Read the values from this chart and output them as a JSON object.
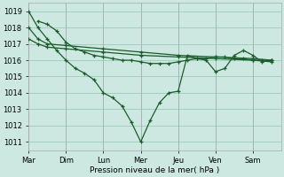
{
  "background_color": "#cce8e0",
  "grid_color": "#99ccbb",
  "line_color": "#1a5c2a",
  "xlabel": "Pression niveau de la mer( hPa )",
  "ylim": [
    1010.5,
    1019.5
  ],
  "yticks": [
    1011,
    1012,
    1013,
    1014,
    1015,
    1016,
    1017,
    1018,
    1019
  ],
  "x_labels": [
    "Mar",
    "Dim",
    "Lun",
    "Mer",
    "Jeu",
    "Ven",
    "Sam"
  ],
  "x_positions": [
    0,
    4,
    8,
    12,
    16,
    20,
    24
  ],
  "xlim": [
    0,
    27
  ],
  "series": [
    {
      "x": [
        0,
        1,
        2,
        3,
        4,
        5,
        6,
        7,
        8,
        9,
        10,
        11,
        12,
        13,
        14,
        15,
        16,
        17,
        18,
        19,
        20,
        21,
        22,
        23,
        24,
        25,
        26
      ],
      "y": [
        1019.0,
        1018.0,
        1017.3,
        1016.6,
        1016.0,
        1015.5,
        1015.2,
        1014.8,
        1014.0,
        1013.7,
        1013.2,
        1012.2,
        1011.0,
        1012.3,
        1013.4,
        1014.0,
        1014.1,
        1016.3,
        1016.1,
        1016.0,
        1015.3,
        1015.5,
        1016.3,
        1016.6,
        1016.3,
        1015.9,
        1016.0
      ]
    },
    {
      "x": [
        0,
        1,
        2,
        4,
        8,
        12,
        16,
        20,
        24,
        26
      ],
      "y": [
        1018.0,
        1017.3,
        1017.0,
        1016.9,
        1016.7,
        1016.5,
        1016.3,
        1016.2,
        1016.1,
        1016.0
      ]
    },
    {
      "x": [
        0,
        1,
        2,
        4,
        8,
        12,
        16,
        20,
        24,
        26
      ],
      "y": [
        1017.3,
        1017.0,
        1016.8,
        1016.7,
        1016.5,
        1016.3,
        1016.2,
        1016.1,
        1016.0,
        1015.9
      ]
    },
    {
      "x": [
        1,
        2,
        3,
        4,
        5,
        6,
        7,
        8,
        9,
        10,
        11,
        12,
        13,
        14,
        15,
        16,
        17,
        18,
        19,
        20,
        21,
        22,
        23,
        24,
        25,
        26
      ],
      "y": [
        1018.4,
        1018.2,
        1017.8,
        1017.1,
        1016.7,
        1016.5,
        1016.3,
        1016.2,
        1016.1,
        1016.0,
        1016.0,
        1015.9,
        1015.8,
        1015.8,
        1015.8,
        1015.9,
        1016.0,
        1016.1,
        1016.1,
        1016.2,
        1016.2,
        1016.1,
        1016.1,
        1016.0,
        1016.0,
        1016.0
      ]
    }
  ]
}
